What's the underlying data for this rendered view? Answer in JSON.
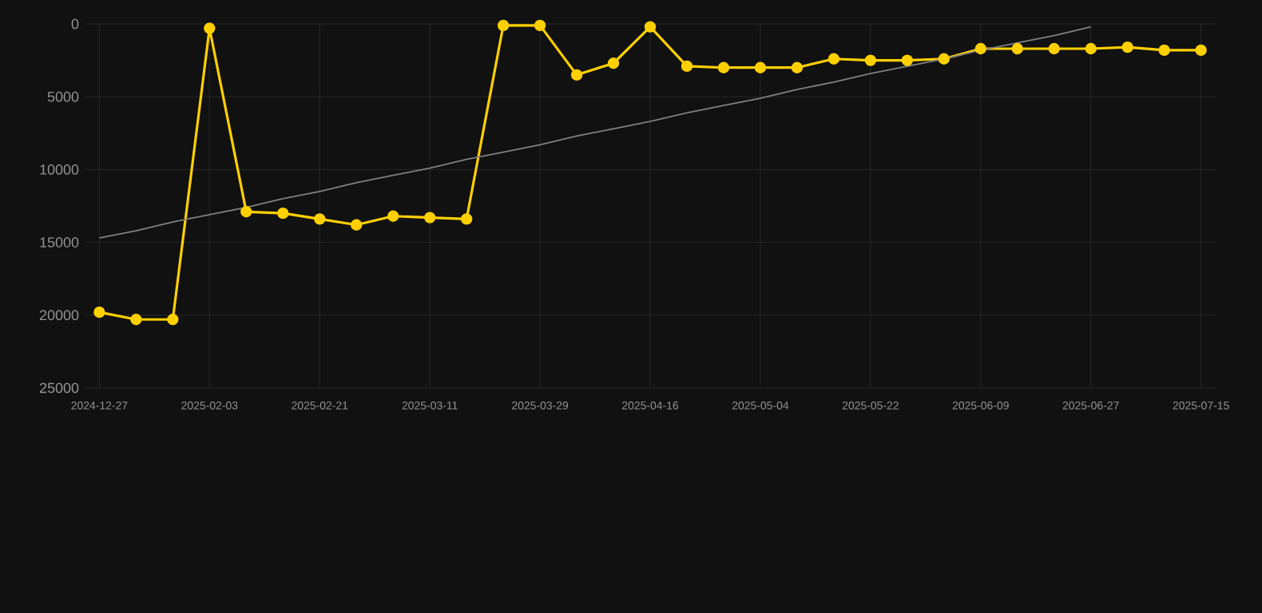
{
  "chart_data": {
    "type": "line",
    "categories": [
      "2024-12-27",
      null,
      null,
      "2025-02-03",
      null,
      null,
      "2025-02-21",
      null,
      null,
      "2025-03-11",
      null,
      null,
      "2025-03-29",
      null,
      null,
      "2025-04-16",
      null,
      null,
      "2025-05-04",
      null,
      null,
      "2025-05-22",
      null,
      null,
      "2025-06-09",
      null,
      null,
      "2025-06-27",
      null,
      null,
      "2025-07-15"
    ],
    "series": [
      {
        "color": "#ffd000",
        "marker": "circle",
        "values": [
          19800,
          20300,
          20300,
          300,
          12900,
          13000,
          13400,
          13800,
          13200,
          13300,
          13400,
          100,
          100,
          3500,
          2700,
          200,
          2900,
          3000,
          3000,
          3000,
          2400,
          2500,
          2500,
          2400,
          1700,
          1700,
          1700,
          1700,
          1600,
          1800,
          1800
        ]
      },
      {
        "color": "#808080",
        "marker": "none",
        "values": [
          14700,
          14200,
          13600,
          13100,
          12600,
          12000,
          11500,
          10900,
          10400,
          9900,
          9300,
          8800,
          8300,
          7700,
          7200,
          6700,
          6100,
          5600,
          5100,
          4500,
          4000,
          3400,
          2900,
          2400,
          1800,
          1300,
          800,
          200,
          null,
          null,
          null
        ]
      }
    ],
    "ylim": [
      25000,
      0
    ],
    "yticks": [
      0,
      5000,
      10000,
      15000,
      20000,
      25000
    ],
    "grid": true,
    "line_style": "solid"
  }
}
